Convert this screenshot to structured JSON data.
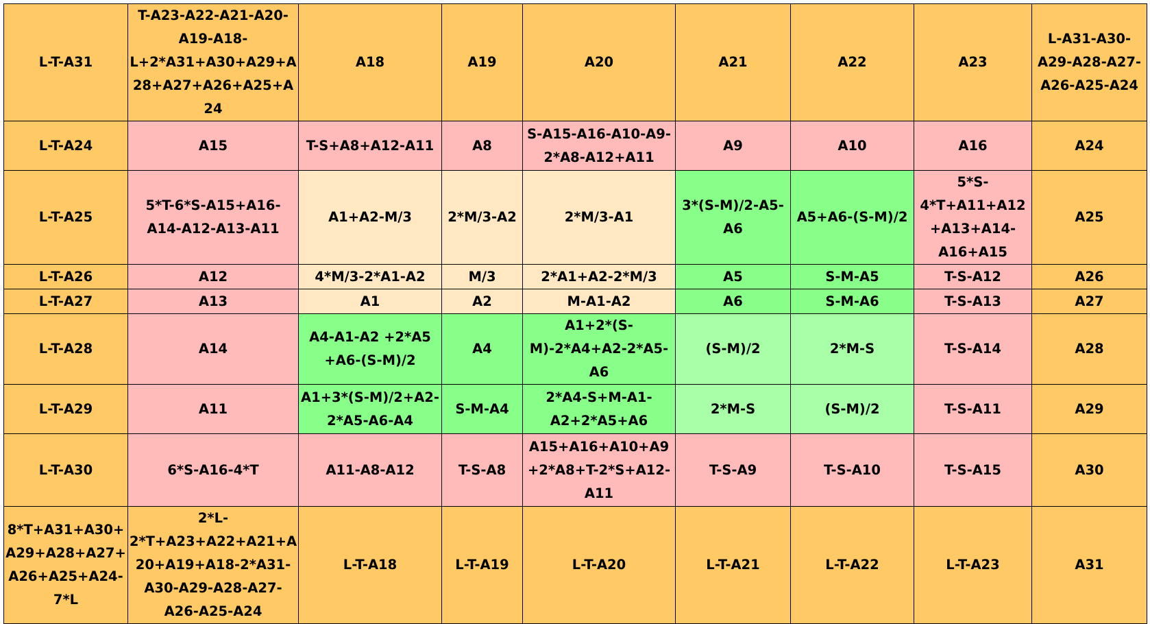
{
  "colors": {
    "orange": "#FFC966",
    "pink": "#FFBABA",
    "cream": "#FFE8C2",
    "green": "#88FF88",
    "light_green": "#A8FFA8",
    "border": "#000000"
  },
  "rows": [
    [
      {
        "text": "L-T-A31",
        "color": "orange"
      },
      {
        "text": "T-A23-A22-A21-A20-A19-A18-L+2*A31+A30+A29+A28+A27+A26+A25+A24",
        "color": "orange"
      },
      {
        "text": "A18",
        "color": "orange"
      },
      {
        "text": "A19",
        "color": "orange"
      },
      {
        "text": "A20",
        "color": "orange"
      },
      {
        "text": "A21",
        "color": "orange"
      },
      {
        "text": "A22",
        "color": "orange"
      },
      {
        "text": "A23",
        "color": "orange"
      },
      {
        "text": "L-A31-A30-A29-A28-A27-A26-A25-A24",
        "color": "orange"
      }
    ],
    [
      {
        "text": "L-T-A24",
        "color": "orange"
      },
      {
        "text": "A15",
        "color": "pink"
      },
      {
        "text": "T-S+A8+A12-A11",
        "color": "pink"
      },
      {
        "text": "A8",
        "color": "pink"
      },
      {
        "text": "S-A15-A16-A10-A9-2*A8-A12+A11",
        "color": "pink"
      },
      {
        "text": "A9",
        "color": "pink"
      },
      {
        "text": "A10",
        "color": "pink"
      },
      {
        "text": "A16",
        "color": "pink"
      },
      {
        "text": "A24",
        "color": "orange"
      }
    ],
    [
      {
        "text": "L-T-A25",
        "color": "orange"
      },
      {
        "text": "5*T-6*S-A15+A16-A14-A12-A13-A11",
        "color": "pink"
      },
      {
        "text": "A1+A2-M/3",
        "color": "cream"
      },
      {
        "text": "2*M/3-A2",
        "color": "cream"
      },
      {
        "text": "2*M/3-A1",
        "color": "cream"
      },
      {
        "text": "3*(S-M)/2-A5-A6",
        "color": "green"
      },
      {
        "text": "A5+A6-(S-M)/2",
        "color": "green"
      },
      {
        "text": "5*S-4*T+A11+A12+A13+A14-A16+A15",
        "color": "pink"
      },
      {
        "text": "A25",
        "color": "orange"
      }
    ],
    [
      {
        "text": "L-T-A26",
        "color": "orange"
      },
      {
        "text": "A12",
        "color": "pink"
      },
      {
        "text": "4*M/3-2*A1-A2",
        "color": "cream"
      },
      {
        "text": "M/3",
        "color": "cream"
      },
      {
        "text": "2*A1+A2-2*M/3",
        "color": "cream"
      },
      {
        "text": "A5",
        "color": "green"
      },
      {
        "text": "S-M-A5",
        "color": "green"
      },
      {
        "text": "T-S-A12",
        "color": "pink"
      },
      {
        "text": "A26",
        "color": "orange"
      }
    ],
    [
      {
        "text": "L-T-A27",
        "color": "orange"
      },
      {
        "text": "A13",
        "color": "pink"
      },
      {
        "text": "A1",
        "color": "cream"
      },
      {
        "text": "A2",
        "color": "cream"
      },
      {
        "text": "M-A1-A2",
        "color": "cream"
      },
      {
        "text": "A6",
        "color": "green"
      },
      {
        "text": "S-M-A6",
        "color": "green"
      },
      {
        "text": "T-S-A13",
        "color": "pink"
      },
      {
        "text": "A27",
        "color": "orange"
      }
    ],
    [
      {
        "text": "L-T-A28",
        "color": "orange"
      },
      {
        "text": "A14",
        "color": "pink"
      },
      {
        "text": "A4-A1-A2 +2*A5 +A6-(S-M)/2",
        "color": "green"
      },
      {
        "text": "A4",
        "color": "green"
      },
      {
        "text": "A1+2*(S-M)-2*A4+A2-2*A5-A6",
        "color": "green"
      },
      {
        "text": "(S-M)/2",
        "color": "light_green"
      },
      {
        "text": "2*M-S",
        "color": "light_green"
      },
      {
        "text": "T-S-A14",
        "color": "pink"
      },
      {
        "text": "A28",
        "color": "orange"
      }
    ],
    [
      {
        "text": "L-T-A29",
        "color": "orange"
      },
      {
        "text": "A11",
        "color": "pink"
      },
      {
        "text": "A1+3*(S-M)/2+A2-2*A5-A6-A4",
        "color": "green"
      },
      {
        "text": "S-M-A4",
        "color": "green"
      },
      {
        "text": "2*A4-S+M-A1-A2+2*A5+A6",
        "color": "green"
      },
      {
        "text": "2*M-S",
        "color": "light_green"
      },
      {
        "text": "(S-M)/2",
        "color": "light_green"
      },
      {
        "text": "T-S-A11",
        "color": "pink"
      },
      {
        "text": "A29",
        "color": "orange"
      }
    ],
    [
      {
        "text": "L-T-A30",
        "color": "orange"
      },
      {
        "text": "6*S-A16-4*T",
        "color": "pink"
      },
      {
        "text": "A11-A8-A12",
        "color": "pink"
      },
      {
        "text": "T-S-A8",
        "color": "pink"
      },
      {
        "text": "A15+A16+A10+A9+2*A8+T-2*S+A12-A11",
        "color": "pink"
      },
      {
        "text": "T-S-A9",
        "color": "pink"
      },
      {
        "text": "T-S-A10",
        "color": "pink"
      },
      {
        "text": "T-S-A15",
        "color": "pink"
      },
      {
        "text": "A30",
        "color": "orange"
      }
    ],
    [
      {
        "text": "8*T+A31+A30+A29+A28+A27+A26+A25+A24-7*L",
        "color": "orange"
      },
      {
        "text": "2*L-2*T+A23+A22+A21+A20+A19+A18-2*A31-A30-A29-A28-A27-A26-A25-A24",
        "color": "orange"
      },
      {
        "text": "L-T-A18",
        "color": "orange"
      },
      {
        "text": "L-T-A19",
        "color": "orange"
      },
      {
        "text": "L-T-A20",
        "color": "orange"
      },
      {
        "text": "L-T-A21",
        "color": "orange"
      },
      {
        "text": "L-T-A22",
        "color": "orange"
      },
      {
        "text": "L-T-A23",
        "color": "orange"
      },
      {
        "text": "A31",
        "color": "orange"
      }
    ]
  ]
}
